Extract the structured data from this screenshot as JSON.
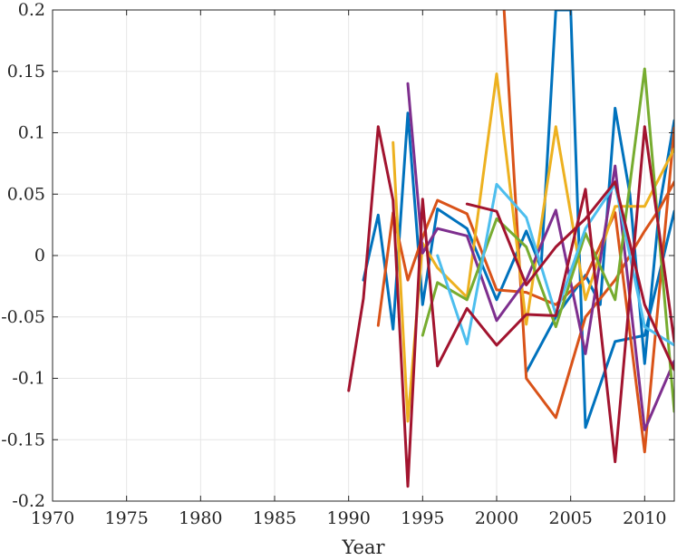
{
  "chart_data": {
    "type": "line",
    "title": "",
    "xlabel": "Year",
    "ylabel": "",
    "xlim": [
      1970,
      2012
    ],
    "ylim": [
      -0.2,
      0.2
    ],
    "xticks": [
      1970,
      1975,
      1980,
      1985,
      1990,
      1995,
      2000,
      2005,
      2010
    ],
    "xtick_labels": [
      "1970",
      "1975",
      "1980",
      "1985",
      "1990",
      "1995",
      "2000",
      "2005",
      "2010"
    ],
    "yticks": [
      -0.2,
      -0.15,
      -0.1,
      -0.05,
      0,
      0.05,
      0.1,
      0.15,
      0.2
    ],
    "ytick_labels": [
      "-0.2",
      "-0.15",
      "-0.1",
      "-0.05",
      "0",
      "0.05",
      "0.1",
      "0.15",
      "0.2"
    ],
    "grid": true,
    "legend": "none",
    "series": [
      {
        "color": "#0072BD",
        "x": [
          1991,
          1992,
          1993,
          1994,
          1995,
          1996,
          1998,
          2000,
          2002,
          2003,
          2004,
          2005,
          2006,
          2008,
          2010,
          2012
        ],
        "y": [
          -0.02,
          0.033,
          -0.06,
          0.116,
          -0.04,
          0.038,
          0.022,
          -0.036,
          0.02,
          -0.01,
          0.2,
          0.2,
          -0.14,
          -0.07,
          -0.065,
          0.036
        ]
      },
      {
        "color": "#0072BD",
        "x": [
          2002,
          2004,
          2006,
          2007,
          2008,
          2009,
          2010,
          2011,
          2012
        ],
        "y": [
          -0.095,
          -0.05,
          -0.016,
          -0.04,
          0.12,
          0.05,
          -0.088,
          0.04,
          0.11
        ]
      },
      {
        "color": "#D95319",
        "x": [
          1992,
          1993,
          1994,
          1995,
          1996,
          1998,
          2000,
          2002,
          2004,
          2006,
          2008,
          2010,
          2012
        ],
        "y": [
          -0.057,
          0.035,
          -0.02,
          0.015,
          0.045,
          0.034,
          -0.028,
          -0.03,
          -0.04,
          -0.018,
          0.035,
          -0.16,
          0.104
        ]
      },
      {
        "color": "#D95319",
        "x": [
          2000.5,
          2002,
          2004,
          2006,
          2008,
          2010,
          2011,
          2012
        ],
        "y": [
          0.2,
          -0.1,
          -0.132,
          -0.05,
          -0.02,
          0.02,
          0.038,
          0.06
        ]
      },
      {
        "color": "#EDB120",
        "x": [
          1993,
          1994,
          1995,
          1996,
          1998,
          2000,
          2002,
          2004,
          2006,
          2008,
          2010,
          2012
        ],
        "y": [
          0.092,
          -0.135,
          0.01,
          -0.01,
          -0.034,
          0.148,
          -0.056,
          0.105,
          -0.036,
          0.04,
          0.04,
          0.087
        ]
      },
      {
        "color": "#7E2F8E",
        "x": [
          1994,
          1995,
          1996,
          1998,
          2000,
          2002,
          2004,
          2006,
          2008,
          2010,
          2012
        ],
        "y": [
          0.14,
          0.002,
          0.022,
          0.016,
          -0.053,
          -0.02,
          0.037,
          -0.08,
          0.073,
          -0.142,
          -0.086
        ]
      },
      {
        "color": "#77AC30",
        "x": [
          1995,
          1996,
          1998,
          2000,
          2002,
          2004,
          2006,
          2008,
          2010,
          2012
        ],
        "y": [
          -0.065,
          -0.022,
          -0.036,
          0.03,
          0.007,
          -0.058,
          0.018,
          -0.036,
          0.152,
          -0.127
        ]
      },
      {
        "color": "#4DBEEE",
        "x": [
          1996,
          1998,
          2000,
          2002,
          2004,
          2006,
          2008,
          2010,
          2012
        ],
        "y": [
          0.0,
          -0.072,
          0.058,
          0.031,
          -0.048,
          0.022,
          0.058,
          -0.058,
          -0.073
        ]
      },
      {
        "color": "#A2142F",
        "x": [
          1990,
          1991,
          1992,
          1993,
          1994,
          1995,
          1996,
          1998,
          2000,
          2002,
          2004,
          2006,
          2008,
          2010,
          2012
        ],
        "y": [
          -0.11,
          -0.035,
          0.105,
          0.045,
          -0.188,
          0.046,
          -0.09,
          -0.043,
          -0.073,
          -0.048,
          -0.049,
          0.054,
          -0.168,
          0.105,
          -0.07
        ]
      },
      {
        "color": "#A2142F",
        "x": [
          1998,
          2000,
          2002,
          2004,
          2006,
          2008,
          2010,
          2012
        ],
        "y": [
          0.042,
          0.036,
          -0.024,
          0.007,
          0.03,
          0.06,
          -0.04,
          -0.093
        ]
      }
    ]
  }
}
